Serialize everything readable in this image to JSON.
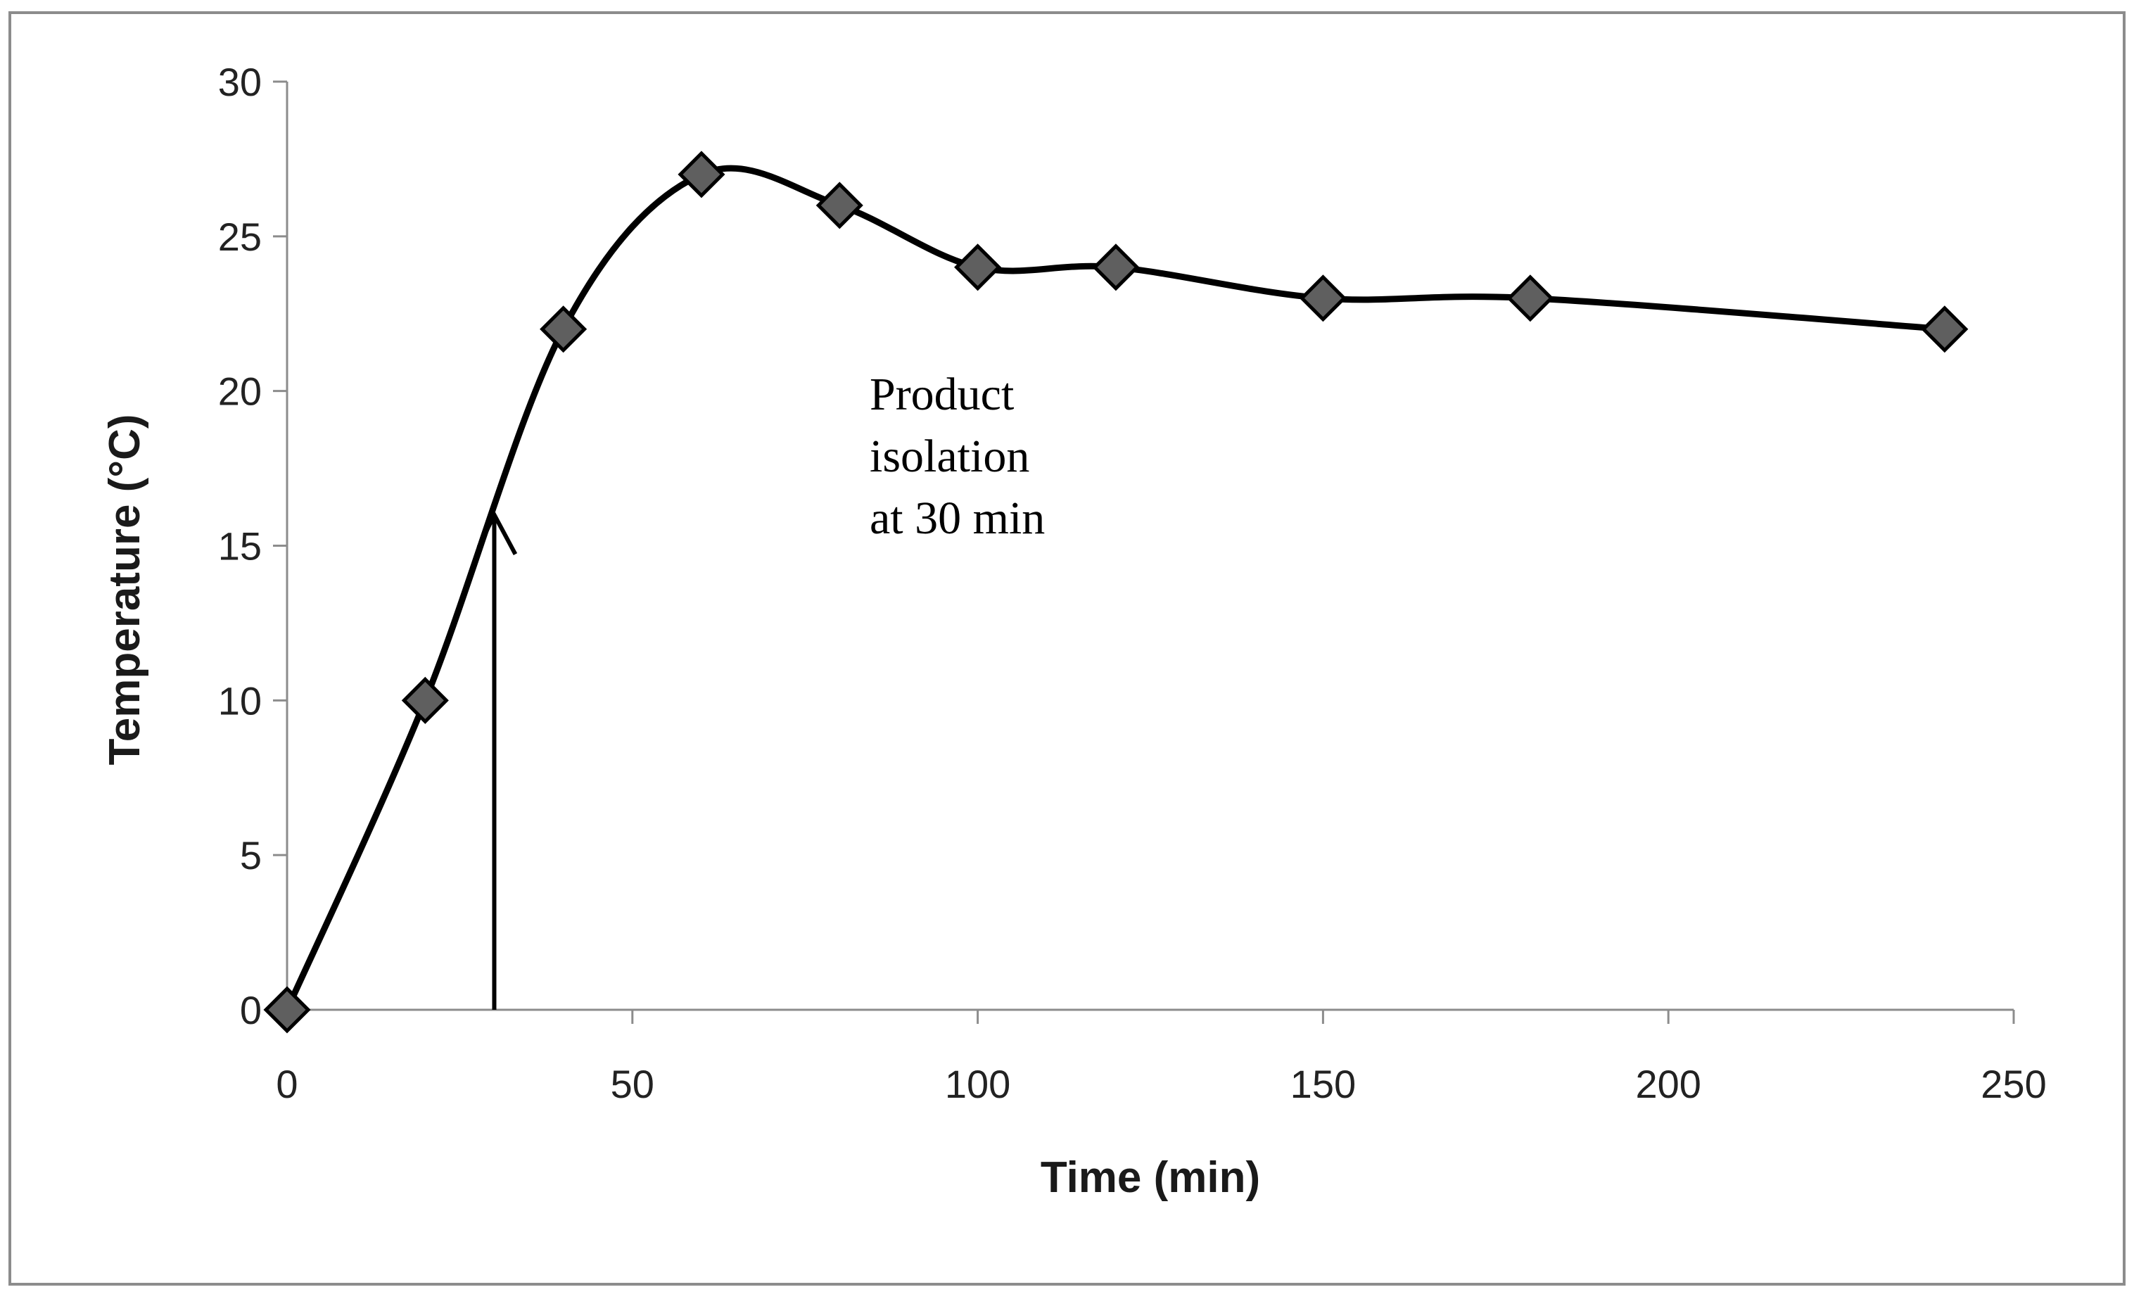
{
  "chart_data": {
    "type": "line",
    "title": "",
    "xlabel": "Time (min)",
    "ylabel": "Temperature (°C)",
    "xlim": [
      0,
      250
    ],
    "ylim": [
      0,
      30
    ],
    "x_ticks": [
      0,
      50,
      100,
      150,
      200,
      250
    ],
    "y_ticks": [
      0,
      5,
      10,
      15,
      20,
      25,
      30
    ],
    "grid": false,
    "smooth": true,
    "series": [
      {
        "name": "Temperature",
        "marker": "diamond",
        "x": [
          0,
          20,
          40,
          60,
          80,
          100,
          120,
          150,
          180,
          240
        ],
        "y": [
          0,
          10,
          22,
          27,
          26,
          24,
          24,
          23,
          23,
          22
        ]
      }
    ],
    "annotation": {
      "lines": [
        "Product",
        "isolation",
        "at 30 min"
      ],
      "arrow_x": 30,
      "arrow_from_y": 0,
      "arrow_to_y": 16
    }
  },
  "colors": {
    "line": "#000000",
    "marker_fill": "#5f5f5f",
    "marker_stroke": "#000000",
    "axis": "#8c8c8c",
    "frame": "#8c8c8c"
  }
}
